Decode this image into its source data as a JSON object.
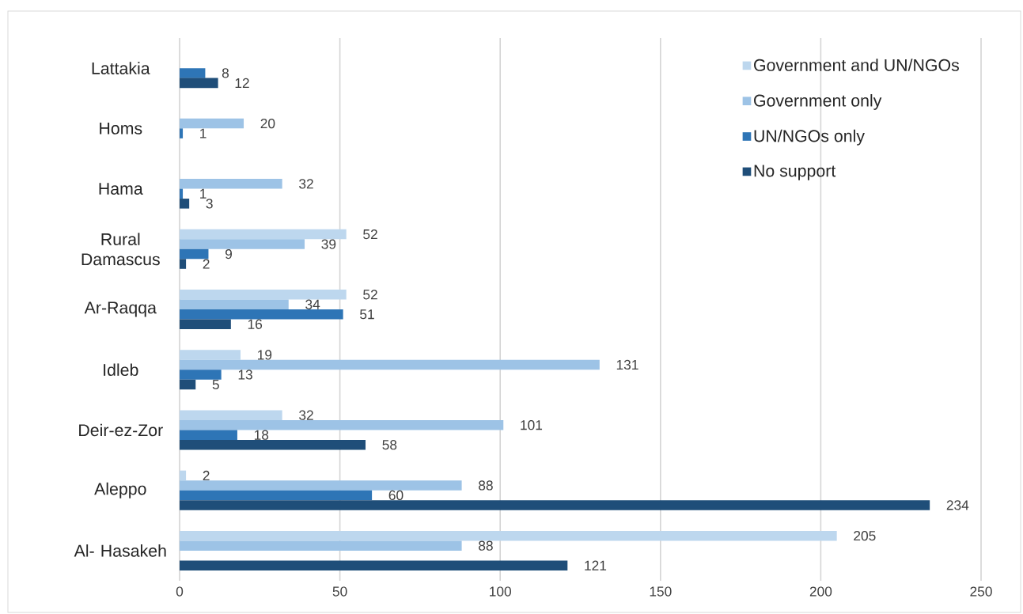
{
  "chart_data": {
    "type": "bar",
    "orientation": "horizontal",
    "categories": [
      "Lattakia",
      "Homs",
      "Hama",
      "Rural Damascus",
      "Ar-Raqqa",
      "Idleb",
      "Deir-ez-Zor",
      "Aleppo",
      "Al- Hasakeh"
    ],
    "series": [
      {
        "name": "Government and UN/NGOs",
        "color": "#bdd7ee",
        "values": [
          null,
          null,
          null,
          52,
          52,
          19,
          32,
          2,
          205
        ]
      },
      {
        "name": "Government  only",
        "color": "#9dc3e6",
        "values": [
          null,
          20,
          32,
          39,
          34,
          131,
          101,
          88,
          88
        ]
      },
      {
        "name": "UN/NGOs only",
        "color": "#2e75b6",
        "values": [
          8,
          1,
          1,
          9,
          51,
          13,
          18,
          60,
          null
        ]
      },
      {
        "name": "No support",
        "color": "#1f4e79",
        "values": [
          12,
          null,
          3,
          2,
          16,
          5,
          58,
          234,
          121
        ]
      }
    ],
    "xlim": [
      0,
      250
    ],
    "xticks": [
      0,
      50,
      100,
      150,
      200,
      250
    ],
    "grid": "x",
    "legend": "top right",
    "data_labels": true
  }
}
